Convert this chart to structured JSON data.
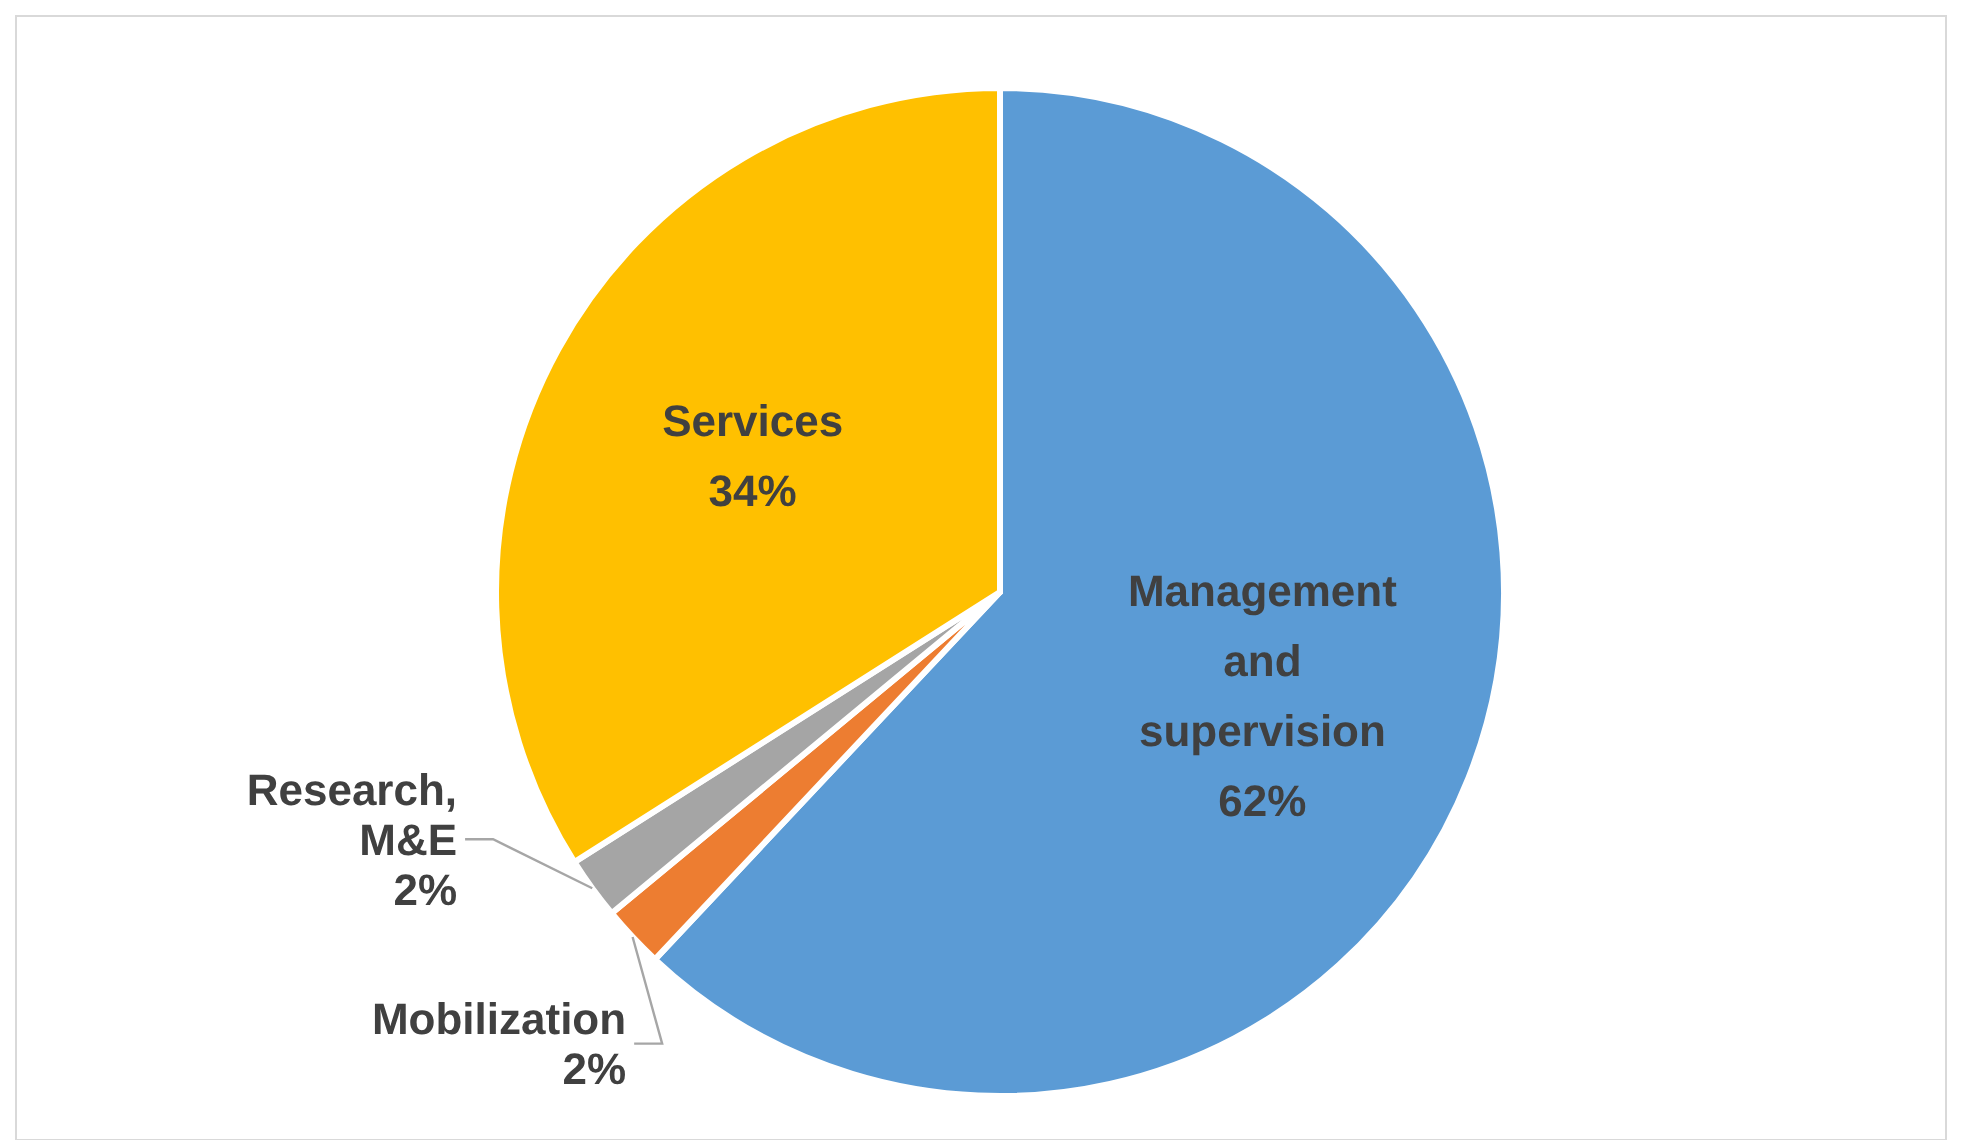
{
  "chart_data": {
    "type": "pie",
    "categories": [
      "Management and supervision",
      "Mobilization",
      "Research, M&E",
      "Services"
    ],
    "values": [
      62,
      2,
      2,
      34
    ],
    "colors": [
      "#5b9bd5",
      "#ed7d31",
      "#a5a5a5",
      "#ffc000"
    ],
    "value_labels": [
      "62%",
      "2%",
      "2%",
      "34%"
    ]
  }
}
